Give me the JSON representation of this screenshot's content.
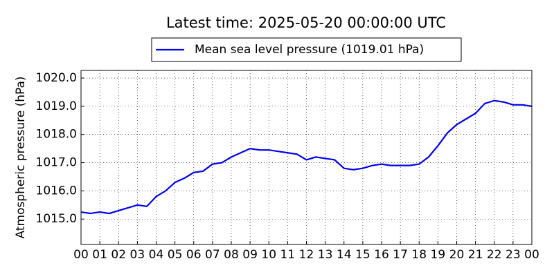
{
  "chart_data": {
    "type": "line",
    "title": "Latest time: 2025-05-20 00:00:00 UTC",
    "ylabel": "Atmospheric pressure (hPa)",
    "x": [
      0,
      0.5,
      1,
      1.5,
      2,
      2.5,
      3,
      3.5,
      4,
      4.5,
      5,
      5.5,
      6,
      6.5,
      7,
      7.5,
      8,
      8.5,
      9,
      9.5,
      10,
      10.5,
      11,
      11.5,
      12,
      12.5,
      13,
      13.5,
      14,
      14.5,
      15,
      15.5,
      16,
      16.5,
      17,
      17.5,
      18,
      18.5,
      19,
      19.5,
      20,
      20.5,
      21,
      21.5,
      22,
      22.5,
      23,
      23.5,
      24
    ],
    "series": [
      {
        "name": "Mean sea level pressure (1019.01 hPa)",
        "color": "#0000ee",
        "values": [
          1015.25,
          1015.2,
          1015.25,
          1015.2,
          1015.3,
          1015.4,
          1015.5,
          1015.45,
          1015.8,
          1016.0,
          1016.3,
          1016.45,
          1016.65,
          1016.7,
          1016.95,
          1017.0,
          1017.2,
          1017.35,
          1017.5,
          1017.45,
          1017.45,
          1017.4,
          1017.35,
          1017.3,
          1017.1,
          1017.2,
          1017.15,
          1017.1,
          1016.8,
          1016.75,
          1016.8,
          1016.9,
          1016.95,
          1016.9,
          1016.9,
          1016.9,
          1016.95,
          1017.2,
          1017.6,
          1018.05,
          1018.35,
          1018.55,
          1018.75,
          1019.1,
          1019.2,
          1019.15,
          1019.05,
          1019.05,
          1019.0
        ]
      }
    ],
    "xlim": [
      0,
      24
    ],
    "xticks": [
      {
        "value": 0,
        "label": "00"
      },
      {
        "value": 1,
        "label": "01"
      },
      {
        "value": 2,
        "label": "02"
      },
      {
        "value": 3,
        "label": "03"
      },
      {
        "value": 4,
        "label": "04"
      },
      {
        "value": 5,
        "label": "05"
      },
      {
        "value": 6,
        "label": "06"
      },
      {
        "value": 7,
        "label": "07"
      },
      {
        "value": 8,
        "label": "08"
      },
      {
        "value": 9,
        "label": "09"
      },
      {
        "value": 10,
        "label": "10"
      },
      {
        "value": 11,
        "label": "11"
      },
      {
        "value": 12,
        "label": "12"
      },
      {
        "value": 13,
        "label": "13"
      },
      {
        "value": 14,
        "label": "14"
      },
      {
        "value": 15,
        "label": "15"
      },
      {
        "value": 16,
        "label": "16"
      },
      {
        "value": 17,
        "label": "17"
      },
      {
        "value": 18,
        "label": "18"
      },
      {
        "value": 19,
        "label": "19"
      },
      {
        "value": 20,
        "label": "20"
      },
      {
        "value": 21,
        "label": "21"
      },
      {
        "value": 22,
        "label": "22"
      },
      {
        "value": 23,
        "label": "23"
      },
      {
        "value": 24,
        "label": "00"
      }
    ],
    "ylim": [
      1014.1,
      1020.27
    ],
    "yticks": [
      {
        "value": 1015,
        "label": "1015.0"
      },
      {
        "value": 1016,
        "label": "1016.0"
      },
      {
        "value": 1017,
        "label": "1017.0"
      },
      {
        "value": 1018,
        "label": "1018.0"
      },
      {
        "value": 1019,
        "label": "1019.0"
      },
      {
        "value": 1020,
        "label": "1020.0"
      }
    ],
    "grid": true
  }
}
